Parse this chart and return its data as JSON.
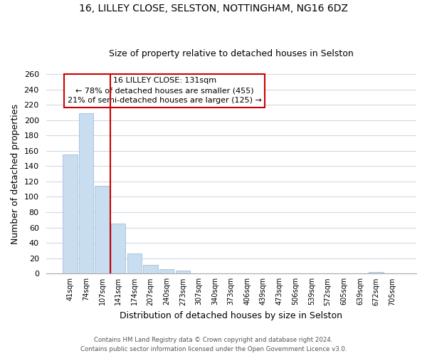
{
  "title": "16, LILLEY CLOSE, SELSTON, NOTTINGHAM, NG16 6DZ",
  "subtitle": "Size of property relative to detached houses in Selston",
  "xlabel": "Distribution of detached houses by size in Selston",
  "ylabel": "Number of detached properties",
  "bar_labels": [
    "41sqm",
    "74sqm",
    "107sqm",
    "141sqm",
    "174sqm",
    "207sqm",
    "240sqm",
    "273sqm",
    "307sqm",
    "340sqm",
    "373sqm",
    "406sqm",
    "439sqm",
    "473sqm",
    "506sqm",
    "539sqm",
    "572sqm",
    "605sqm",
    "639sqm",
    "672sqm",
    "705sqm"
  ],
  "bar_values": [
    155,
    209,
    114,
    65,
    26,
    11,
    6,
    4,
    0,
    0,
    0,
    0,
    0,
    0,
    0,
    0,
    0,
    0,
    0,
    2,
    0
  ],
  "bar_color": "#c9ddf0",
  "bar_edge_color": "#a8c4e0",
  "vline_color": "#cc0000",
  "annotation_title": "16 LILLEY CLOSE: 131sqm",
  "annotation_line1": "← 78% of detached houses are smaller (455)",
  "annotation_line2": "21% of semi-detached houses are larger (125) →",
  "annotation_box_color": "#ffffff",
  "annotation_box_edge": "#cc0000",
  "ylim": [
    0,
    260
  ],
  "yticks": [
    0,
    20,
    40,
    60,
    80,
    100,
    120,
    140,
    160,
    180,
    200,
    220,
    240,
    260
  ],
  "footer1": "Contains HM Land Registry data © Crown copyright and database right 2024.",
  "footer2": "Contains public sector information licensed under the Open Government Licence v3.0.",
  "bg_color": "#ffffff",
  "grid_color": "#d0d8e8",
  "title_fontsize": 10,
  "subtitle_fontsize": 9
}
